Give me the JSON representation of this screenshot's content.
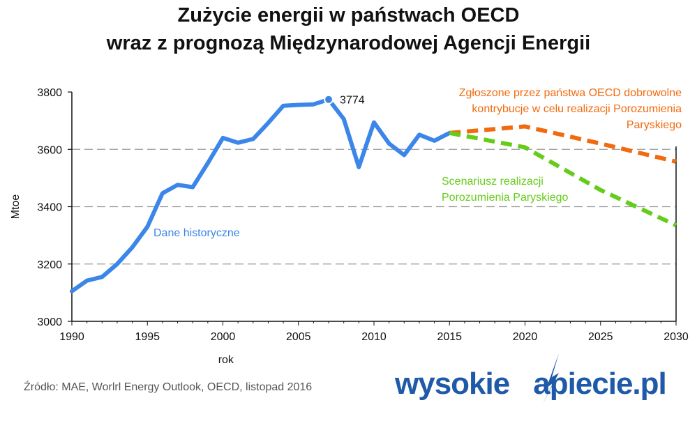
{
  "title_line1": "Zużycie energii w państwach OECD",
  "title_line2": "wraz z prognozą Międzynarodowej Agencji Energii",
  "source": "Źródło: MAE, Worlrl Energy Outlook, OECD, listopad 2016",
  "logo_text": "wysokie",
  "logo_text2": "apiecie.pl",
  "colors": {
    "historical": "#3b86e8",
    "ndc": "#f26a0f",
    "paris": "#66cc1a",
    "grid": "#999999",
    "logo": "#1f5aa8"
  },
  "chart_data": {
    "type": "line",
    "title": "Zużycie energii w państwach OECD wraz z prognozą Międzynarodowej Agencji Energii",
    "xlabel": "rok",
    "ylabel": "Mtoe",
    "xlim": [
      1990,
      2030
    ],
    "ylim": [
      3000,
      3800
    ],
    "xticks": [
      1990,
      1995,
      2000,
      2005,
      2010,
      2015,
      2020,
      2025,
      2030
    ],
    "yticks": [
      3000,
      3200,
      3400,
      3600,
      3800
    ],
    "grid": "horizontal dashed at 3200, 3400, 3600",
    "series": [
      {
        "name": "Dane historyczne",
        "style": "solid",
        "x": [
          1990,
          1991,
          1992,
          1993,
          1994,
          1995,
          1996,
          1997,
          1998,
          1999,
          2000,
          2001,
          2002,
          2003,
          2004,
          2005,
          2006,
          2007,
          2008,
          2009,
          2010,
          2011,
          2012,
          2013,
          2014,
          2015
        ],
        "y": [
          3105,
          3142,
          3155,
          3200,
          3258,
          3330,
          3447,
          3476,
          3468,
          3552,
          3640,
          3623,
          3636,
          3692,
          3752,
          3755,
          3757,
          3774,
          3706,
          3538,
          3694,
          3620,
          3580,
          3651,
          3630,
          3657
        ]
      },
      {
        "name": "Zgłoszone przez państwa OECD dobrowolne kontrybucje w celu realizacji Porozumienia Paryskiego",
        "style": "dashed",
        "x": [
          2015,
          2020,
          2025,
          2030
        ],
        "y": [
          3657,
          3680,
          3620,
          3557
        ]
      },
      {
        "name": "Scenariusz realizacji Porozumienia Paryskiego",
        "style": "dashed",
        "x": [
          2015,
          2020,
          2025,
          2030
        ],
        "y": [
          3657,
          3607,
          3458,
          3335
        ]
      }
    ],
    "annotations": [
      {
        "text": "3774",
        "x": 2007,
        "y": 3774
      }
    ]
  }
}
